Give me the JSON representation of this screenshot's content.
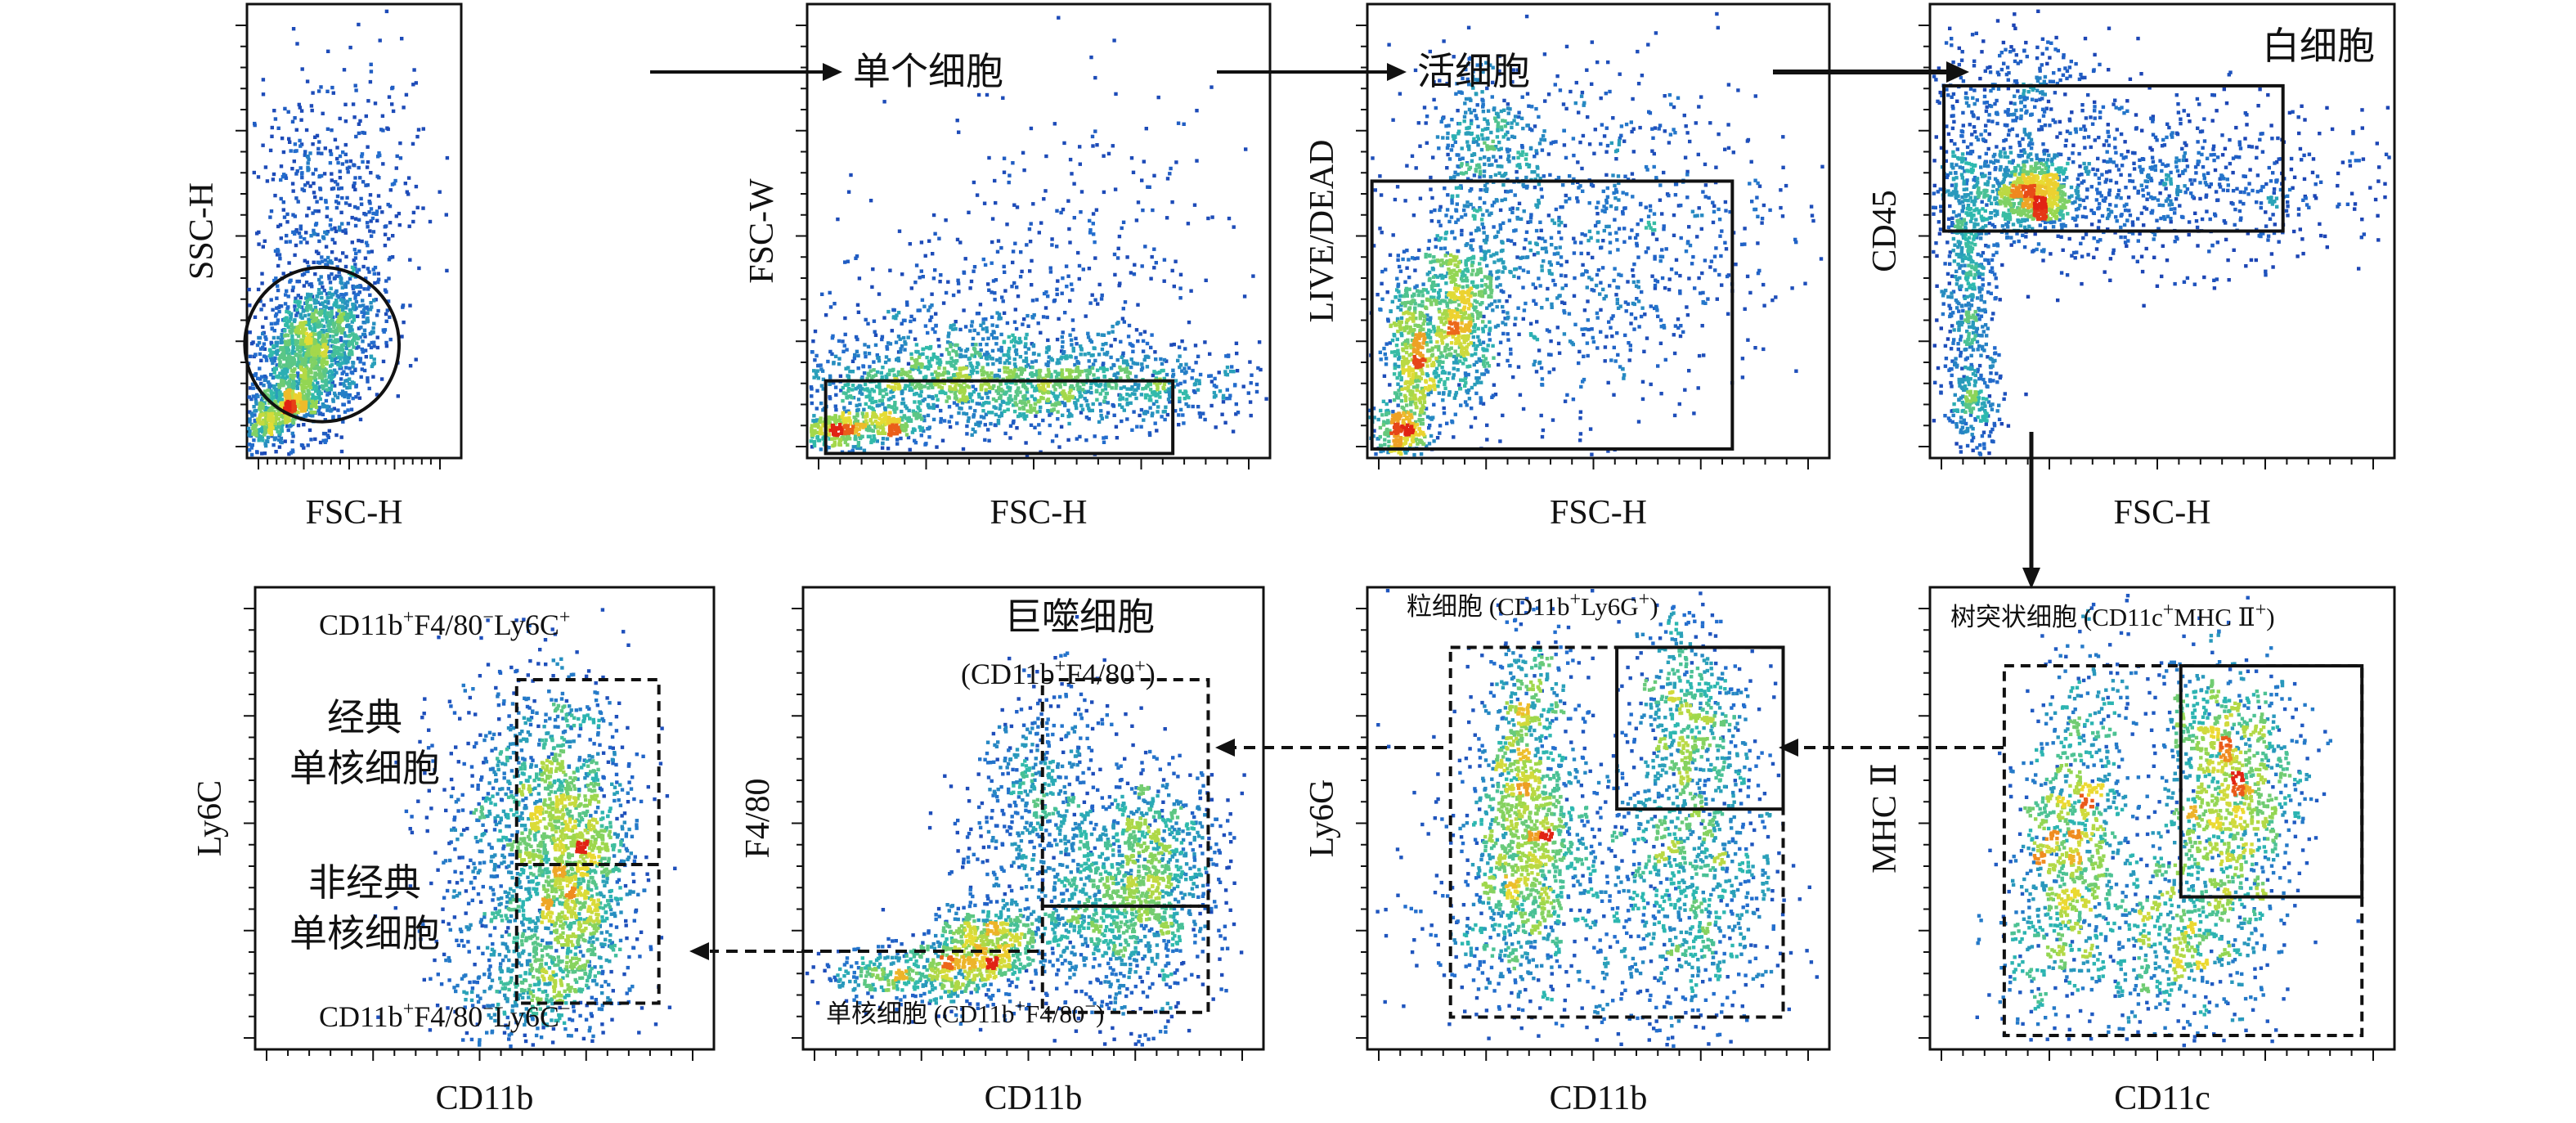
{
  "colors": {
    "background": "#ffffff",
    "frame": "#111111",
    "density_low": "#1e2fa8",
    "density_mid": "#2fb8a0",
    "density_high": "#d8e23a",
    "density_peak": "#e02814"
  },
  "chart_data": [
    {
      "id": "p1",
      "type": "scatter",
      "title": "",
      "xlabel": "FSC-H",
      "ylabel": "SSC-H",
      "xlim": [
        0,
        100
      ],
      "ylim": [
        0,
        100
      ],
      "clusters": [
        {
          "x": 30,
          "y": 22,
          "sx": 16,
          "sy": 8,
          "n": 1500,
          "rot": 18
        },
        {
          "x": 8,
          "y": 8,
          "sx": 5,
          "sy": 3,
          "n": 220,
          "rot": 15
        },
        {
          "x": 22,
          "y": 12,
          "sx": 4,
          "sy": 2,
          "n": 160,
          "rot": 10
        },
        {
          "x": 30,
          "y": 50,
          "sx": 16,
          "sy": 17,
          "n": 380,
          "rot": 20
        },
        {
          "x": 55,
          "y": 65,
          "sx": 16,
          "sy": 14,
          "n": 140,
          "rot": 0
        }
      ],
      "gates": [
        {
          "shape": "ellipse",
          "style": "solid",
          "cx": 35,
          "cy": 25,
          "rx": 36,
          "ry": 17,
          "rot": 22,
          "label": ""
        }
      ]
    },
    {
      "id": "p2",
      "type": "scatter",
      "title": "单个细胞",
      "xlabel": "FSC-H",
      "ylabel": "FSC-W",
      "xlim": [
        0,
        100
      ],
      "ylim": [
        0,
        100
      ],
      "clusters": [
        {
          "x": 45,
          "y": 16,
          "sx": 27,
          "sy": 5,
          "n": 1500,
          "rot": 0
        },
        {
          "x": 6,
          "y": 6,
          "sx": 4,
          "sy": 2,
          "n": 220,
          "rot": 0
        },
        {
          "x": 18,
          "y": 7,
          "sx": 4,
          "sy": 2,
          "n": 160,
          "rot": 0
        },
        {
          "x": 35,
          "y": 28,
          "sx": 22,
          "sy": 10,
          "n": 450,
          "rot": 8
        },
        {
          "x": 60,
          "y": 52,
          "sx": 20,
          "sy": 16,
          "n": 160,
          "rot": 0
        }
      ],
      "gates": [
        {
          "shape": "rect",
          "style": "solid",
          "x0": 4,
          "x1": 79,
          "y0": 1,
          "y1": 17,
          "label": ""
        }
      ]
    },
    {
      "id": "p3",
      "type": "scatter",
      "title": "活细胞",
      "xlabel": "FSC-H",
      "ylabel": "LIVE/DEAD",
      "xlim": [
        0,
        100
      ],
      "ylim": [
        0,
        100
      ],
      "clusters": [
        {
          "x": 10,
          "y": 20,
          "sx": 3,
          "sy": 10,
          "n": 500,
          "rot": 0
        },
        {
          "x": 20,
          "y": 32,
          "sx": 4,
          "sy": 10,
          "n": 560,
          "rot": 0
        },
        {
          "x": 45,
          "y": 45,
          "sx": 23,
          "sy": 18,
          "n": 1000,
          "rot": 20
        },
        {
          "x": 25,
          "y": 70,
          "sx": 6,
          "sy": 10,
          "n": 320,
          "rot": 0
        },
        {
          "x": 6,
          "y": 5,
          "sx": 3,
          "sy": 3,
          "n": 160,
          "rot": 0
        }
      ],
      "gates": [
        {
          "shape": "rect",
          "style": "solid",
          "x0": 1,
          "x1": 79,
          "y0": 2,
          "y1": 61,
          "label": ""
        }
      ]
    },
    {
      "id": "p4",
      "type": "scatter",
      "title": "白细胞",
      "xlabel": "FSC-H",
      "ylabel": "CD45",
      "xlim": [
        0,
        100
      ],
      "ylim": [
        0,
        100
      ],
      "clusters": [
        {
          "x": 22,
          "y": 58,
          "sx": 4,
          "sy": 4,
          "n": 600,
          "rot": 0
        },
        {
          "x": 40,
          "y": 60,
          "sx": 30,
          "sy": 9,
          "n": 1100,
          "rot": 0
        },
        {
          "x": 8,
          "y": 40,
          "sx": 3,
          "sy": 18,
          "n": 550,
          "rot": 0
        },
        {
          "x": 20,
          "y": 82,
          "sx": 10,
          "sy": 6,
          "n": 220,
          "rot": 0
        },
        {
          "x": 10,
          "y": 12,
          "sx": 3,
          "sy": 6,
          "n": 160,
          "rot": 0
        }
      ],
      "gates": [
        {
          "shape": "rect",
          "style": "solid",
          "x0": 3,
          "x1": 76,
          "y0": 50,
          "y1": 82,
          "label": ""
        }
      ]
    },
    {
      "id": "p5",
      "type": "scatter",
      "title": "",
      "xlabel": "CD11b",
      "ylabel": "Ly6C",
      "xlim": [
        0,
        100
      ],
      "ylim": [
        0,
        100
      ],
      "clusters": [
        {
          "x": 70,
          "y": 38,
          "sx": 6,
          "sy": 14,
          "n": 900,
          "rot": 0
        },
        {
          "x": 61,
          "y": 57,
          "sx": 10,
          "sy": 14,
          "n": 700,
          "rot": 0
        },
        {
          "x": 60,
          "y": 28,
          "sx": 10,
          "sy": 14,
          "n": 500,
          "rot": 0
        },
        {
          "x": 60,
          "y": 12,
          "sx": 10,
          "sy": 8,
          "n": 250,
          "rot": 0
        }
      ],
      "gates": [
        {
          "shape": "rect",
          "style": "dashed",
          "x0": 57,
          "x1": 88,
          "y0": 40,
          "y1": 80,
          "label": ""
        },
        {
          "shape": "rect",
          "style": "dashed",
          "x0": 57,
          "x1": 88,
          "y0": 10,
          "y1": 40,
          "label": ""
        }
      ]
    },
    {
      "id": "p6",
      "type": "scatter",
      "title": "",
      "xlabel": "CD11b",
      "ylabel": "F4/80",
      "xlim": [
        0,
        100
      ],
      "ylim": [
        0,
        100
      ],
      "clusters": [
        {
          "x": 38,
          "y": 21,
          "sx": 7,
          "sy": 5,
          "n": 700,
          "rot": 28
        },
        {
          "x": 50,
          "y": 55,
          "sx": 7,
          "sy": 12,
          "n": 450,
          "rot": -18
        },
        {
          "x": 68,
          "y": 30,
          "sx": 10,
          "sy": 12,
          "n": 900,
          "rot": 0
        },
        {
          "x": 76,
          "y": 42,
          "sx": 8,
          "sy": 10,
          "n": 500,
          "rot": 0
        },
        {
          "x": 20,
          "y": 16,
          "sx": 8,
          "sy": 3,
          "n": 250,
          "rot": 0
        }
      ],
      "gates": [
        {
          "shape": "rect",
          "style": "dashed",
          "x0": 52,
          "x1": 88,
          "y0": 31,
          "y1": 80,
          "label": ""
        },
        {
          "shape": "rect",
          "style": "dashed",
          "x0": 52,
          "x1": 88,
          "y0": 8,
          "y1": 31,
          "label": ""
        }
      ]
    },
    {
      "id": "p7",
      "type": "scatter",
      "title": "",
      "xlabel": "CD11b",
      "ylabel": "Ly6G",
      "xlim": [
        0,
        100
      ],
      "ylim": [
        0,
        100
      ],
      "clusters": [
        {
          "x": 34,
          "y": 40,
          "sx": 7,
          "sy": 14,
          "n": 900,
          "rot": -8
        },
        {
          "x": 34,
          "y": 68,
          "sx": 5,
          "sy": 14,
          "n": 450,
          "rot": 0
        },
        {
          "x": 70,
          "y": 40,
          "sx": 9,
          "sy": 18,
          "n": 850,
          "rot": 0
        },
        {
          "x": 69,
          "y": 74,
          "sx": 6,
          "sy": 12,
          "n": 400,
          "rot": 0
        },
        {
          "x": 48,
          "y": 28,
          "sx": 22,
          "sy": 20,
          "n": 320,
          "rot": 0
        }
      ],
      "gates": [
        {
          "shape": "rect",
          "style": "dashed",
          "x0": 18,
          "x1": 90,
          "y0": 7,
          "y1": 87,
          "label": ""
        },
        {
          "shape": "rect",
          "style": "solid",
          "x0": 54,
          "x1": 90,
          "y0": 52,
          "y1": 87,
          "label": ""
        }
      ]
    },
    {
      "id": "p8",
      "type": "scatter",
      "title": "",
      "xlabel": "CD11c",
      "ylabel": "MHC Ⅱ",
      "xlim": [
        0,
        100
      ],
      "ylim": [
        0,
        100
      ],
      "clusters": [
        {
          "x": 30,
          "y": 44,
          "sx": 6,
          "sy": 20,
          "n": 950,
          "rot": -8
        },
        {
          "x": 66,
          "y": 52,
          "sx": 7,
          "sy": 13,
          "n": 750,
          "rot": -10
        },
        {
          "x": 53,
          "y": 24,
          "sx": 11,
          "sy": 11,
          "n": 600,
          "rot": 0
        },
        {
          "x": 60,
          "y": 68,
          "sx": 7,
          "sy": 9,
          "n": 300,
          "rot": 0
        }
      ],
      "gates": [
        {
          "shape": "rect",
          "style": "dashed",
          "x0": 16,
          "x1": 93,
          "y0": 3,
          "y1": 83,
          "label": ""
        },
        {
          "shape": "rect",
          "style": "solid",
          "x0": 54,
          "x1": 93,
          "y0": 33,
          "y1": 83,
          "label": ""
        }
      ]
    }
  ],
  "labels": {
    "p5_top": {
      "base1": "CD11b",
      "sup1": "+",
      "base2": "F4/80",
      "sup2": "−",
      "base3": "Ly6C",
      "sup3": "+"
    },
    "p5_classical_line1": "经典",
    "p5_classical_line2": "单核细胞",
    "p5_nonclassical_line1": "非经典",
    "p5_nonclassical_line2": "单核细胞",
    "p5_bottom": {
      "base1": "CD11b",
      "sup1": "+",
      "base2": "F4/80",
      "sup2": "−",
      "base3": "Ly6C",
      "sup3": "−"
    },
    "p6_macrophage_line1": "巨噬细胞",
    "p6_macrophage_line2": {
      "open": "(CD11b",
      "sup1": "+",
      "mid": "F4/80",
      "sup2": "+",
      "close": ")"
    },
    "p6_monocyte": {
      "prefix": "单核细胞 (CD11b",
      "sup1": "+",
      "mid": "F4/80",
      "sup2": "−",
      "close": ")"
    },
    "p7_granulocyte": {
      "prefix": "粒细胞 (CD11b",
      "sup1": "+",
      "mid": "Ly6G",
      "sup2": "+",
      "close": ")"
    },
    "p8_dendritic": {
      "prefix": "树突状细胞 (CD11c",
      "sup1": "+",
      "mid": "MHC Ⅱ",
      "sup2": "+",
      "close": ")"
    }
  }
}
